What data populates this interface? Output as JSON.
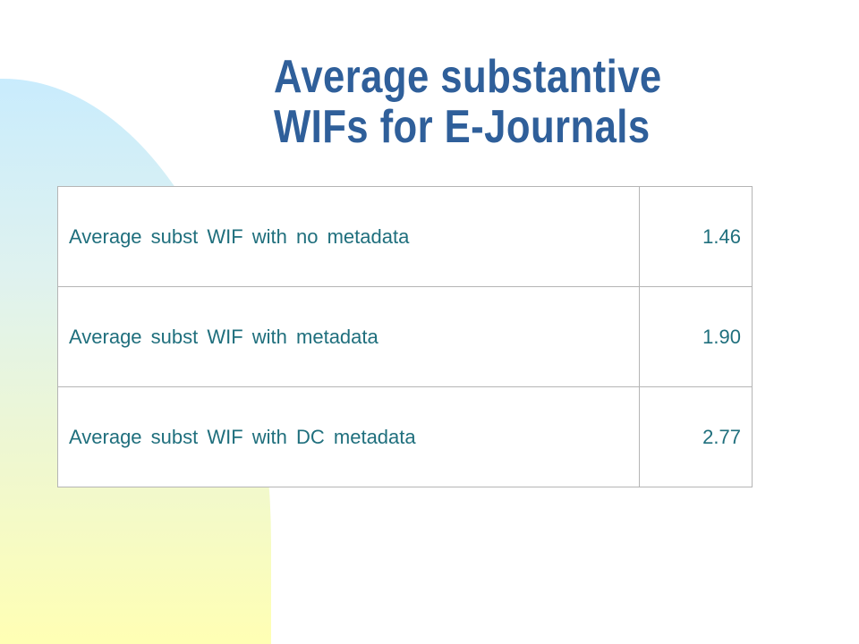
{
  "slide": {
    "title_line1": "Average substantive",
    "title_line2": "WIFs for E-Journals",
    "colors": {
      "title": "#2f5f9a",
      "table_text": "#1f6f7d",
      "shape_top": "#c9ecfd",
      "shape_bottom": "#ffffb4"
    }
  },
  "table": {
    "rows": [
      {
        "label": "Average subst WIF with no metadata",
        "value": "1.46"
      },
      {
        "label": "Average subst WIF with metadata",
        "value": "1.90"
      },
      {
        "label": "Average subst WIF with DC metadata",
        "value": "2.77"
      }
    ]
  }
}
